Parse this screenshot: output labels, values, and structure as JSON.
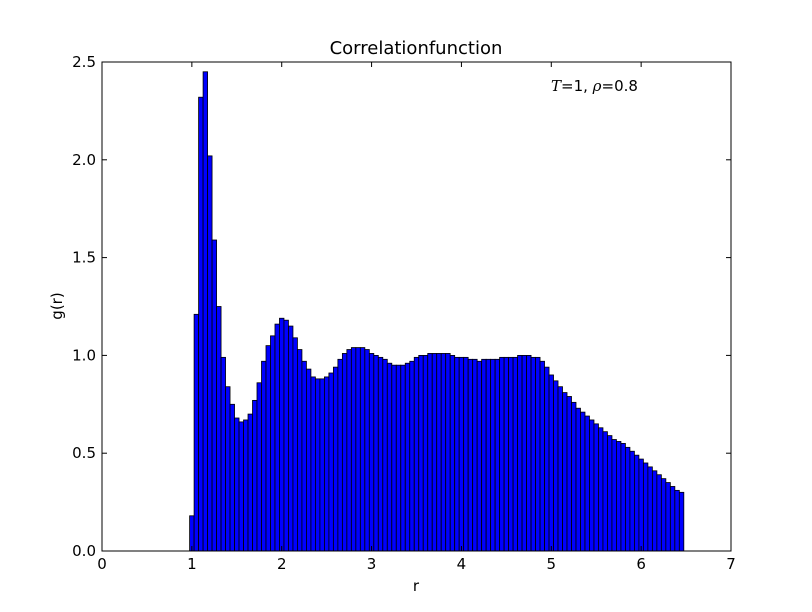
{
  "chart_data": {
    "type": "bar",
    "title": "Correlationfunction",
    "xlabel": "r",
    "ylabel": "g(r)",
    "xlim": [
      0,
      7
    ],
    "ylim": [
      0,
      2.5
    ],
    "x_ticks": [
      0,
      1,
      2,
      3,
      4,
      5,
      6,
      7
    ],
    "x_tick_labels": [
      "0",
      "1",
      "2",
      "3",
      "4",
      "5",
      "6",
      "7"
    ],
    "y_ticks": [
      0.0,
      0.5,
      1.0,
      1.5,
      2.0,
      2.5
    ],
    "y_tick_labels": [
      "0.0",
      "0.5",
      "1.0",
      "1.5",
      "2.0",
      "2.5"
    ],
    "grid": false,
    "legend": false,
    "bar_color": "#0000ff",
    "edge_color": "#000000",
    "annotation": {
      "T_symbol": "T",
      "T_value": "=1, ",
      "rho_symbol": "ρ",
      "rho_value": "=0.8"
    },
    "bin_width": 0.05,
    "bin_start": 0.975,
    "values": [
      0.18,
      1.21,
      2.32,
      2.45,
      2.02,
      1.59,
      1.25,
      0.99,
      0.84,
      0.75,
      0.68,
      0.66,
      0.67,
      0.7,
      0.77,
      0.86,
      0.97,
      1.05,
      1.1,
      1.16,
      1.19,
      1.18,
      1.15,
      1.09,
      1.03,
      0.97,
      0.93,
      0.89,
      0.88,
      0.88,
      0.89,
      0.91,
      0.94,
      0.98,
      1.01,
      1.03,
      1.04,
      1.04,
      1.04,
      1.03,
      1.01,
      1.0,
      0.99,
      0.98,
      0.96,
      0.95,
      0.95,
      0.95,
      0.96,
      0.97,
      0.99,
      1.0,
      1.0,
      1.01,
      1.01,
      1.01,
      1.01,
      1.01,
      1.0,
      0.99,
      0.99,
      0.99,
      0.98,
      0.98,
      0.97,
      0.98,
      0.98,
      0.98,
      0.98,
      0.99,
      0.99,
      0.99,
      0.99,
      1.0,
      1.0,
      1.0,
      0.99,
      0.99,
      0.97,
      0.94,
      0.9,
      0.87,
      0.84,
      0.81,
      0.79,
      0.76,
      0.73,
      0.71,
      0.69,
      0.67,
      0.65,
      0.63,
      0.61,
      0.59,
      0.57,
      0.56,
      0.55,
      0.53,
      0.51,
      0.49,
      0.47,
      0.45,
      0.43,
      0.41,
      0.39,
      0.37,
      0.35,
      0.33,
      0.31,
      0.3
    ]
  }
}
